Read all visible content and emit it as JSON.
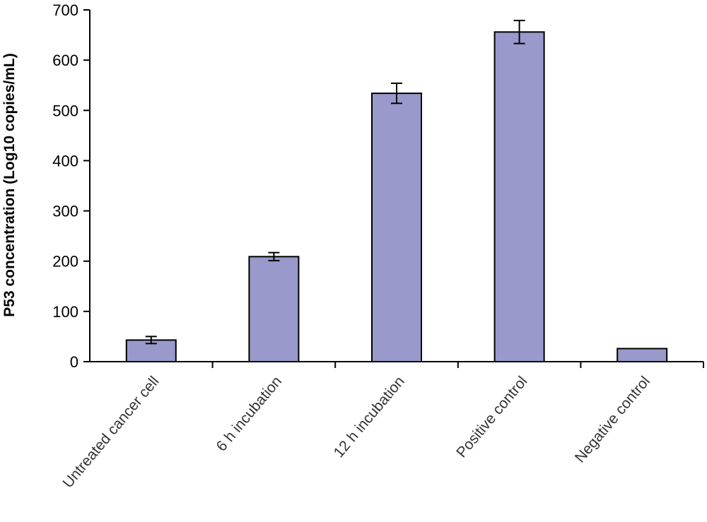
{
  "chart_data": {
    "type": "bar",
    "title": "",
    "xlabel": "",
    "ylabel": "P53 concentration (Log10 copies/mL)",
    "ylim": [
      0,
      700
    ],
    "yticks": [
      0,
      100,
      200,
      300,
      400,
      500,
      600,
      700
    ],
    "grid": false,
    "categories": [
      "Untreated cancer cell",
      "6 h incubation",
      "12 h incubation",
      "Positive control",
      "Negative control"
    ],
    "values": [
      43,
      209,
      534,
      656,
      26
    ],
    "errors": [
      7,
      8,
      20,
      23,
      null
    ],
    "bar_color": "#9999cc",
    "bar_edge_color": "#000000"
  }
}
